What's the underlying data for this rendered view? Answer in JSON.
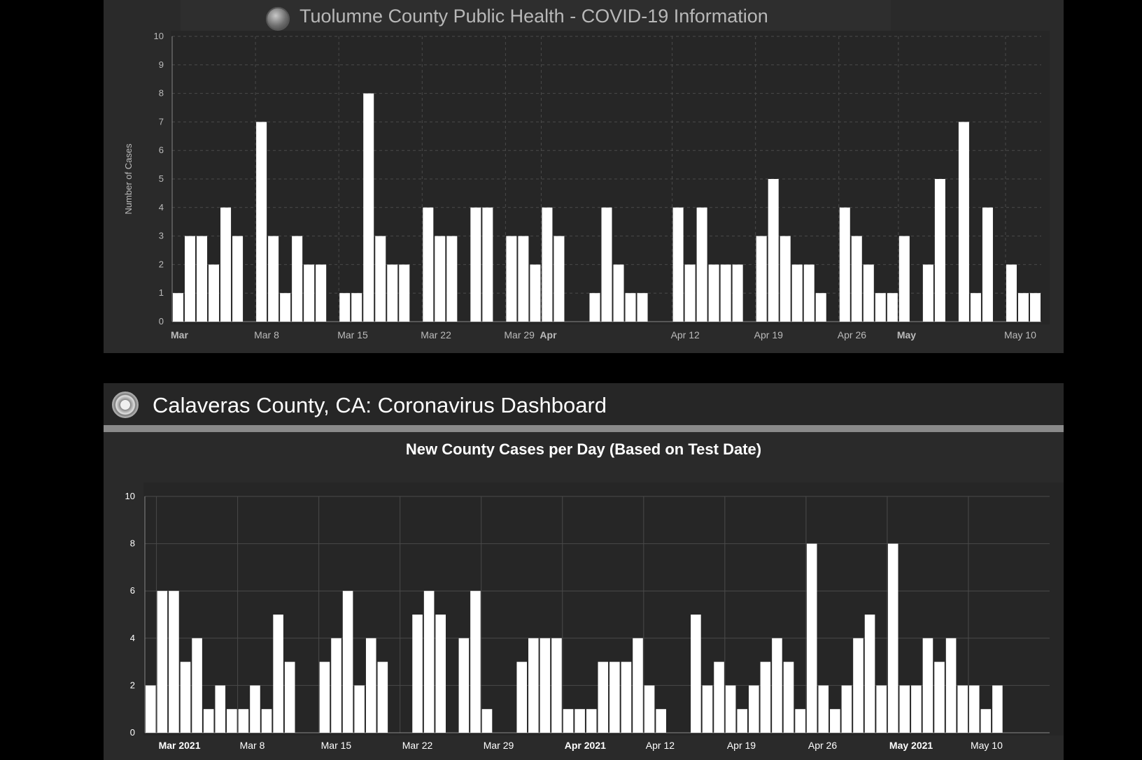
{
  "top": {
    "title": "Tuolumne County Public Health - COVID-19 Information"
  },
  "bottom": {
    "title": "Calaveras County, CA: Coronavirus Dashboard",
    "chart_title": "New County Cases per Day (Based on Test Date)"
  },
  "colors": {
    "background": "#000000",
    "panel": "#2a2a2a",
    "bar": "#ffffff",
    "grid": "#555555",
    "text": "#cccccc"
  },
  "chart_data": [
    {
      "type": "bar",
      "title": "",
      "ylabel": "Number of Cases",
      "xlabel": "",
      "ylim": [
        0,
        10
      ],
      "y_ticks": [
        0,
        1,
        2,
        3,
        4,
        5,
        6,
        7,
        8,
        9,
        10
      ],
      "grid": true,
      "x_start": "2021-03-01",
      "x_tick_labels": [
        {
          "date": "2021-03-01",
          "label": "Mar",
          "bold": true
        },
        {
          "date": "2021-03-08",
          "label": "Mar 8",
          "bold": false
        },
        {
          "date": "2021-03-15",
          "label": "Mar 15",
          "bold": false
        },
        {
          "date": "2021-03-22",
          "label": "Mar 22",
          "bold": false
        },
        {
          "date": "2021-03-29",
          "label": "Mar 29",
          "bold": false
        },
        {
          "date": "2021-04-01",
          "label": "Apr",
          "bold": true
        },
        {
          "date": "2021-04-12",
          "label": "Apr 12",
          "bold": false
        },
        {
          "date": "2021-04-19",
          "label": "Apr 19",
          "bold": false
        },
        {
          "date": "2021-04-26",
          "label": "Apr 26",
          "bold": false
        },
        {
          "date": "2021-05-01",
          "label": "May",
          "bold": true
        },
        {
          "date": "2021-05-10",
          "label": "May 10",
          "bold": false
        }
      ],
      "values": [
        1,
        3,
        3,
        2,
        4,
        3,
        0,
        7,
        3,
        1,
        3,
        2,
        2,
        0,
        1,
        1,
        8,
        3,
        2,
        2,
        0,
        4,
        3,
        3,
        0,
        4,
        4,
        0,
        3,
        3,
        2,
        4,
        3,
        0,
        0,
        1,
        4,
        2,
        1,
        1,
        0,
        0,
        4,
        2,
        4,
        2,
        2,
        2,
        0,
        3,
        5,
        3,
        2,
        2,
        1,
        0,
        4,
        3,
        2,
        1,
        1,
        3,
        0,
        2,
        5,
        0,
        7,
        1,
        4,
        0,
        2,
        1,
        1
      ]
    },
    {
      "type": "bar",
      "title": "New County Cases per Day (Based on Test Date)",
      "ylabel": "",
      "xlabel": "",
      "ylim": [
        0,
        10
      ],
      "y_ticks": [
        0,
        2,
        4,
        6,
        8,
        10
      ],
      "grid": true,
      "x_start": "2021-02-28",
      "x_tick_labels": [
        {
          "date": "2021-03-01",
          "label": "Mar 2021",
          "bold": true
        },
        {
          "date": "2021-03-08",
          "label": "Mar 8",
          "bold": false
        },
        {
          "date": "2021-03-15",
          "label": "Mar 15",
          "bold": false
        },
        {
          "date": "2021-03-22",
          "label": "Mar 22",
          "bold": false
        },
        {
          "date": "2021-03-29",
          "label": "Mar 29",
          "bold": false
        },
        {
          "date": "2021-04-05",
          "label": "Apr 2021",
          "bold": true
        },
        {
          "date": "2021-04-12",
          "label": "Apr 12",
          "bold": false
        },
        {
          "date": "2021-04-19",
          "label": "Apr 19",
          "bold": false
        },
        {
          "date": "2021-04-26",
          "label": "Apr 26",
          "bold": false
        },
        {
          "date": "2021-05-03",
          "label": "May 2021",
          "bold": true
        },
        {
          "date": "2021-05-10",
          "label": "May 10",
          "bold": false
        }
      ],
      "values": [
        2,
        6,
        6,
        3,
        4,
        1,
        2,
        1,
        1,
        2,
        1,
        5,
        3,
        0,
        0,
        3,
        4,
        6,
        2,
        4,
        3,
        0,
        0,
        5,
        6,
        5,
        0,
        4,
        6,
        1,
        0,
        0,
        3,
        4,
        4,
        4,
        1,
        1,
        1,
        3,
        3,
        3,
        4,
        2,
        1,
        0,
        0,
        5,
        2,
        3,
        2,
        1,
        2,
        3,
        4,
        3,
        1,
        8,
        2,
        1,
        2,
        4,
        5,
        2,
        8,
        2,
        2,
        4,
        3,
        4,
        2,
        2,
        1,
        2,
        0,
        0,
        0,
        0
      ]
    }
  ]
}
